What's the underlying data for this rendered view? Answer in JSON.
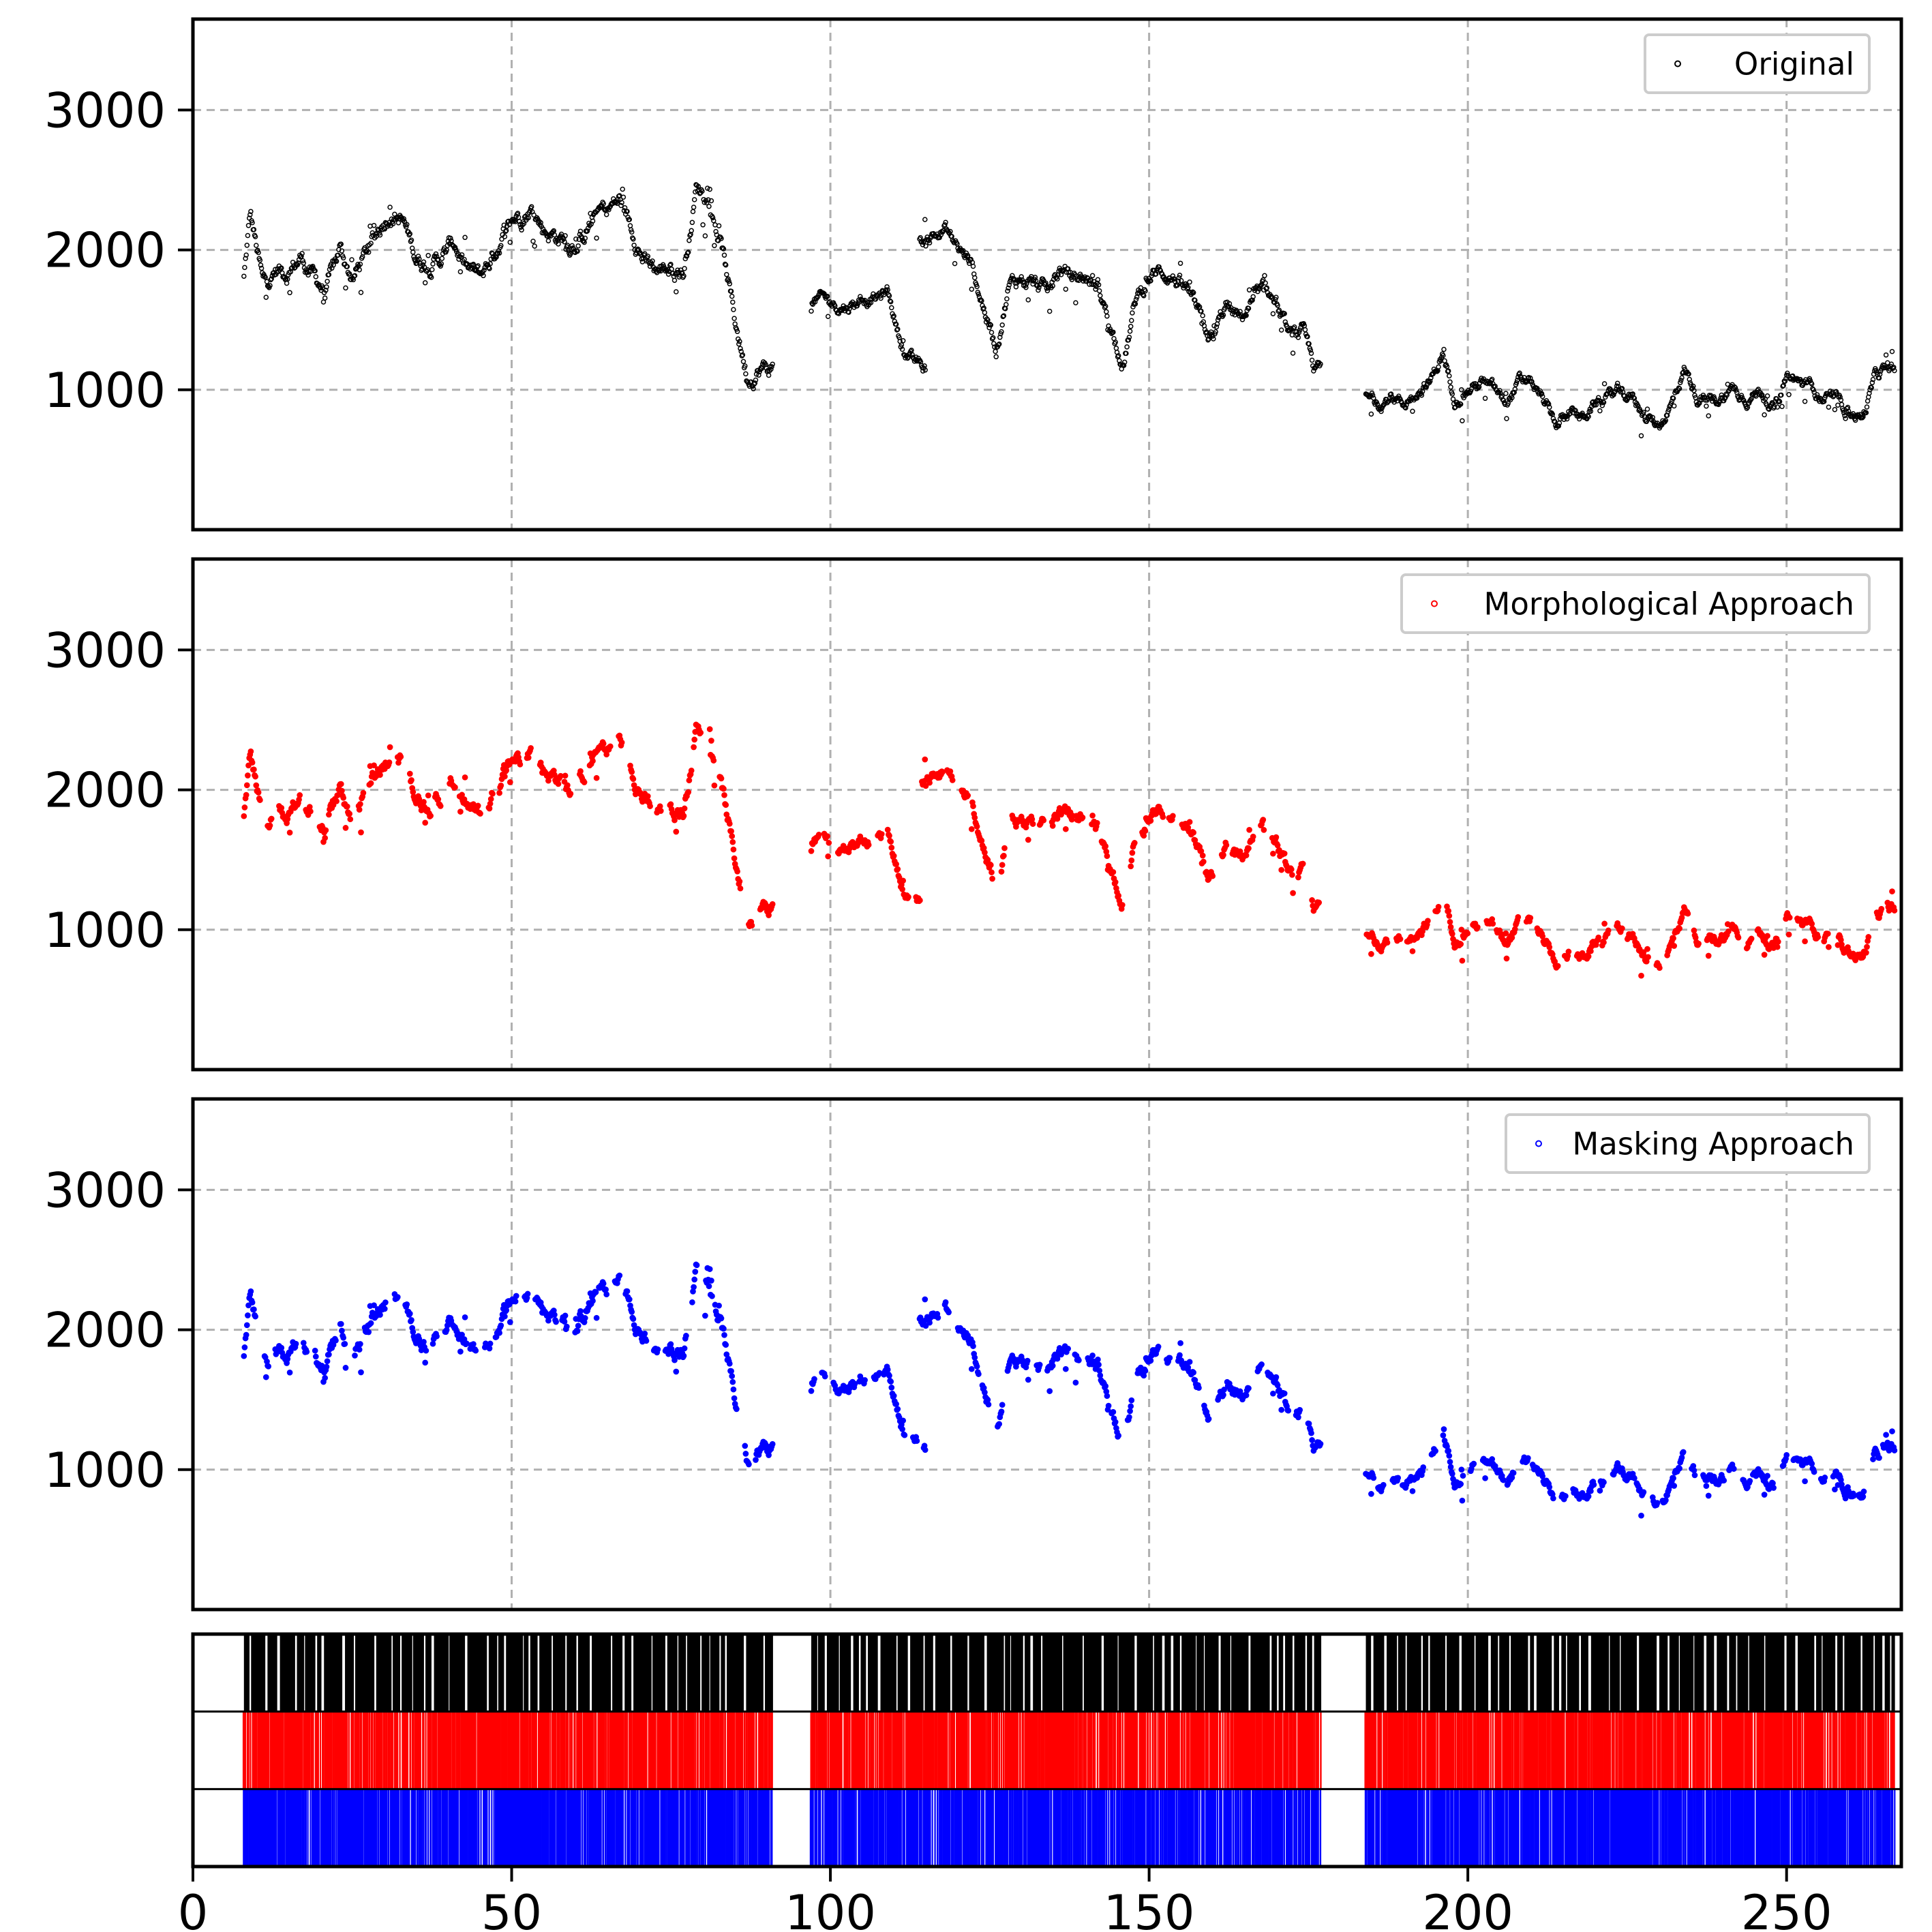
{
  "chart_data": [
    {
      "type": "scatter",
      "panel": "original",
      "legend": "Original",
      "legend_placement": "top-right",
      "color": "#000000",
      "xlim": [
        0,
        268
      ],
      "ylim": [
        0,
        3650
      ],
      "y_ticks": [
        1000,
        2000,
        3000
      ],
      "grid": true,
      "segments": [
        {
          "start": 8,
          "end": 91,
          "anchors": [
            [
              8,
              1800
            ],
            [
              9,
              2250
            ],
            [
              11,
              1750
            ],
            [
              13,
              1850
            ],
            [
              15,
              1850
            ],
            [
              17,
              1950
            ],
            [
              19,
              1800
            ],
            [
              21,
              1700
            ],
            [
              23,
              2000
            ],
            [
              25,
              1800
            ],
            [
              27,
              1950
            ],
            [
              29,
              2150
            ],
            [
              31,
              2300
            ],
            [
              33,
              2200
            ],
            [
              35,
              1950
            ],
            [
              37,
              1900
            ],
            [
              39,
              1950
            ],
            [
              41,
              2050
            ],
            [
              43,
              1850
            ],
            [
              45,
              1800
            ],
            [
              47,
              1950
            ],
            [
              49,
              2150
            ],
            [
              51,
              2250
            ],
            [
              53,
              2300
            ],
            [
              55,
              2150
            ],
            [
              57,
              2100
            ],
            [
              59,
              2050
            ],
            [
              61,
              2100
            ],
            [
              63,
              2250
            ],
            [
              65,
              2300
            ],
            [
              67,
              2350
            ],
            [
              69,
              2150
            ],
            [
              71,
              1900
            ],
            [
              73,
              1850
            ],
            [
              75,
              1900
            ],
            [
              77,
              1850
            ],
            [
              79,
              2450
            ],
            [
              81,
              2400
            ],
            [
              83,
              2000
            ],
            [
              85,
              1500
            ],
            [
              87,
              1100
            ],
            [
              89,
              1150
            ],
            [
              91,
              1150
            ]
          ],
          "amp": 180
        },
        {
          "start": 97,
          "end": 115,
          "anchors": [
            [
              97,
              1650
            ],
            [
              99,
              1650
            ],
            [
              101,
              1600
            ],
            [
              103,
              1600
            ],
            [
              105,
              1650
            ],
            [
              107,
              1650
            ],
            [
              109,
              1700
            ],
            [
              111,
              1350
            ],
            [
              113,
              1200
            ],
            [
              115,
              1150
            ]
          ],
          "amp": 120
        },
        {
          "start": 114,
          "end": 177,
          "anchors": [
            [
              114,
              2050
            ],
            [
              116,
              2100
            ],
            [
              118,
              2150
            ],
            [
              120,
              2000
            ],
            [
              122,
              1900
            ],
            [
              124,
              1600
            ],
            [
              126,
              1300
            ],
            [
              128,
              1750
            ],
            [
              130,
              1800
            ],
            [
              132,
              1750
            ],
            [
              134,
              1700
            ],
            [
              136,
              1850
            ],
            [
              138,
              1800
            ],
            [
              140,
              1800
            ],
            [
              142,
              1750
            ],
            [
              144,
              1450
            ],
            [
              146,
              1200
            ],
            [
              148,
              1650
            ],
            [
              150,
              1800
            ],
            [
              152,
              1850
            ],
            [
              154,
              1800
            ],
            [
              156,
              1700
            ],
            [
              158,
              1500
            ],
            [
              160,
              1350
            ],
            [
              162,
              1600
            ],
            [
              164,
              1500
            ],
            [
              166,
              1600
            ],
            [
              168,
              1700
            ],
            [
              170,
              1600
            ],
            [
              172,
              1350
            ],
            [
              174,
              1400
            ],
            [
              176,
              1150
            ],
            [
              177,
              1150
            ]
          ],
          "amp": 150
        },
        {
          "start": 184,
          "end": 267,
          "anchors": [
            [
              184,
              950
            ],
            [
              186,
              900
            ],
            [
              188,
              950
            ],
            [
              190,
              900
            ],
            [
              192,
              1000
            ],
            [
              194,
              1050
            ],
            [
              196,
              1250
            ],
            [
              198,
              950
            ],
            [
              200,
              1000
            ],
            [
              202,
              1050
            ],
            [
              204,
              1000
            ],
            [
              206,
              900
            ],
            [
              208,
              1050
            ],
            [
              210,
              1050
            ],
            [
              212,
              900
            ],
            [
              214,
              750
            ],
            [
              216,
              850
            ],
            [
              218,
              800
            ],
            [
              220,
              900
            ],
            [
              222,
              950
            ],
            [
              224,
              1000
            ],
            [
              226,
              950
            ],
            [
              228,
              800
            ],
            [
              230,
              750
            ],
            [
              232,
              900
            ],
            [
              234,
              1150
            ],
            [
              236,
              950
            ],
            [
              238,
              900
            ],
            [
              240,
              950
            ],
            [
              242,
              1000
            ],
            [
              244,
              950
            ],
            [
              246,
              1000
            ],
            [
              248,
              850
            ],
            [
              250,
              1100
            ],
            [
              252,
              1050
            ],
            [
              254,
              1000
            ],
            [
              256,
              950
            ],
            [
              258,
              900
            ],
            [
              260,
              850
            ],
            [
              262,
              800
            ],
            [
              264,
              1100
            ],
            [
              266,
              1150
            ],
            [
              267,
              1150
            ]
          ],
          "amp": 120
        }
      ]
    },
    {
      "type": "scatter",
      "panel": "morphological",
      "legend": "Morphological Approach",
      "legend_placement": "top-right",
      "color": "#ff0000",
      "xlim": [
        0,
        268
      ],
      "ylim": [
        0,
        3650
      ],
      "y_ticks": [
        1000,
        2000,
        3000
      ],
      "grid": true
    },
    {
      "type": "scatter",
      "panel": "masking",
      "legend": "Masking Approach",
      "legend_placement": "top-right",
      "color": "#0000ff",
      "xlim": [
        0,
        268
      ],
      "ylim": [
        0,
        3650
      ],
      "y_ticks": [
        1000,
        2000,
        3000
      ],
      "grid": true
    },
    {
      "type": "raster",
      "panel": "event-raster",
      "xlim": [
        0,
        268
      ],
      "x_ticks": [
        0,
        50,
        100,
        150,
        200,
        250
      ],
      "rows": [
        {
          "name": "original",
          "color": "#000000",
          "density": "dense"
        },
        {
          "name": "morphological",
          "color": "#ff0000",
          "density": "medium"
        },
        {
          "name": "masking",
          "color": "#0000ff",
          "density": "medium"
        }
      ],
      "active_intervals": [
        [
          8,
          91
        ],
        [
          97,
          177
        ],
        [
          184,
          267
        ]
      ]
    }
  ],
  "labels": {
    "y_tick_labels": [
      "1000",
      "2000",
      "3000"
    ],
    "x_tick_labels": [
      "0",
      "50",
      "100",
      "150",
      "200",
      "250"
    ]
  },
  "legends": {
    "original": "Original",
    "morphological": "Morphological Approach",
    "masking": "Masking Approach"
  }
}
